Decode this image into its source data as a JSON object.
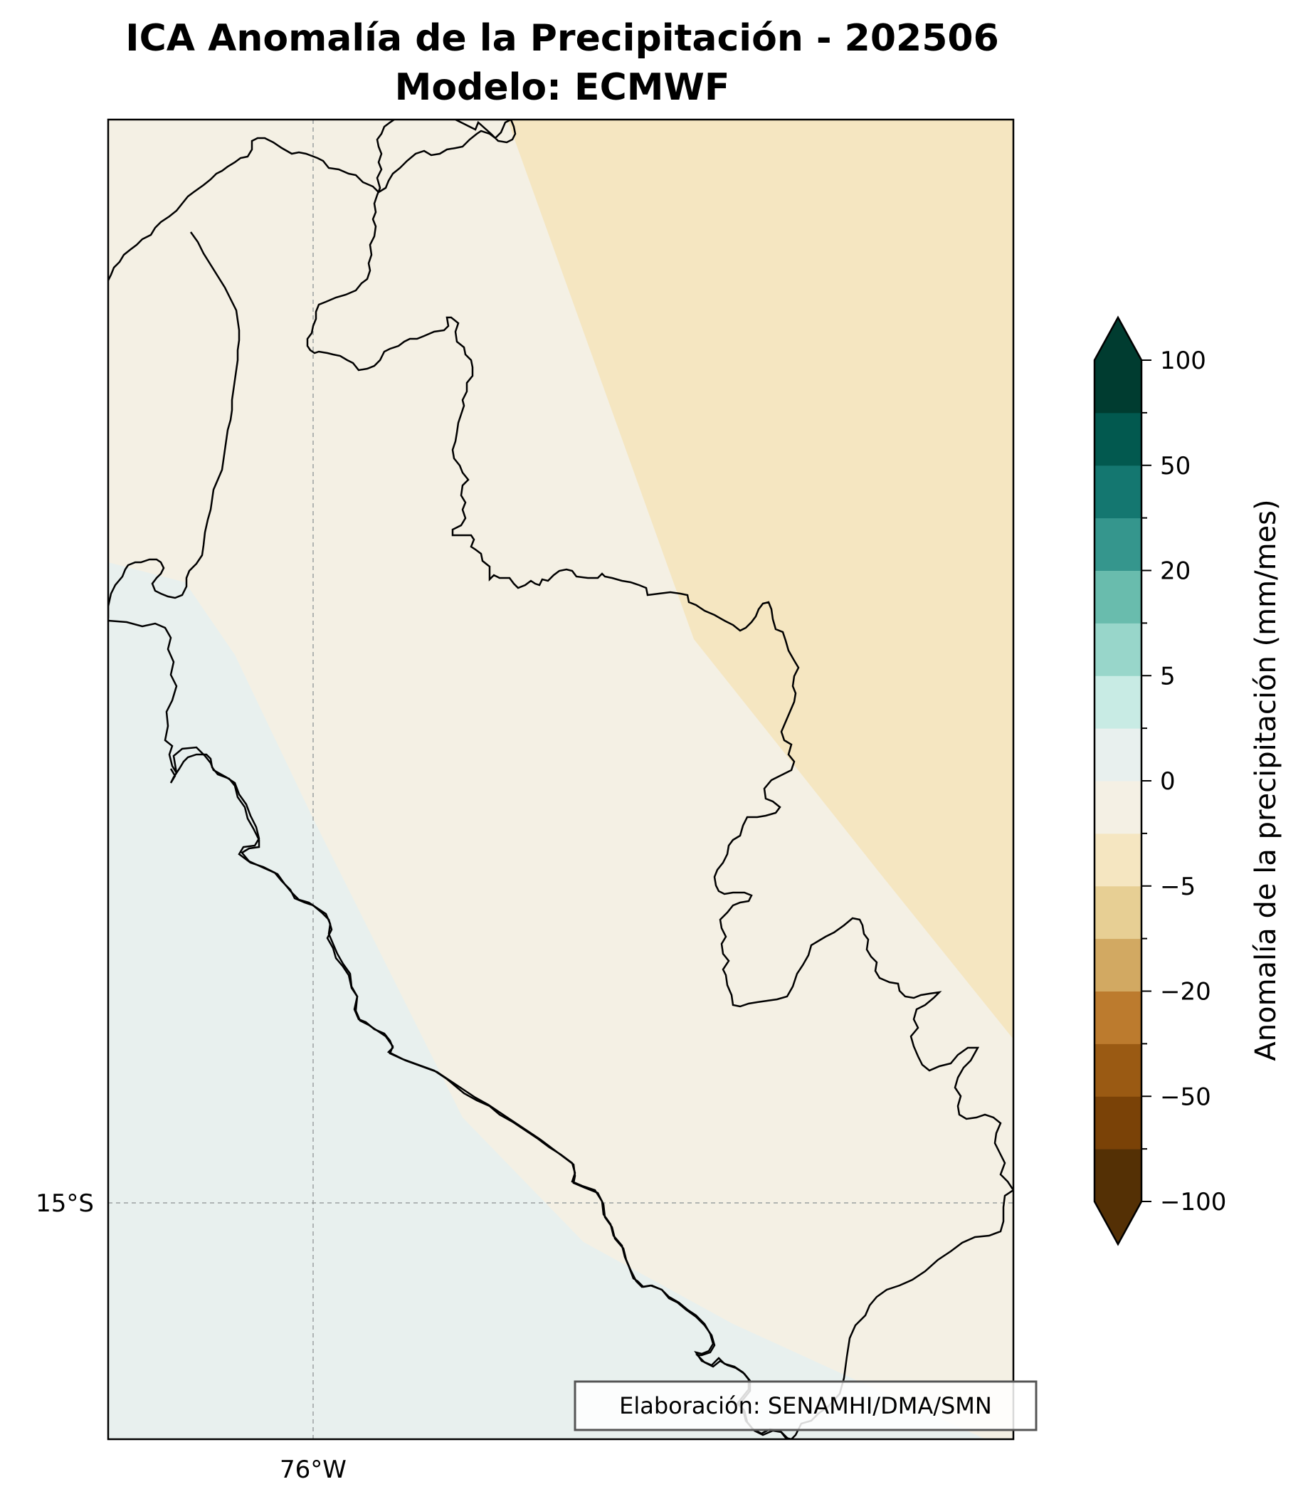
{
  "title": {
    "line1": "ICA Anomalía de la Precipitación - 202506",
    "line2": "Modelo: ECMWF"
  },
  "axes": {
    "x_tick_label": "76°W",
    "y_tick_label": "15°S"
  },
  "colorbar": {
    "label": "Anomalía de la precipitación (mm/mes)",
    "tick_labels": [
      "100",
      "50",
      "20",
      "5",
      "0",
      "−5",
      "−20",
      "−50",
      "−100"
    ],
    "levels": [
      -100,
      -75,
      -50,
      -30,
      -20,
      -10,
      -5,
      -2,
      0,
      2,
      5,
      10,
      20,
      30,
      50,
      75,
      100
    ],
    "colors": [
      "#543005",
      "#7a4207",
      "#9a5a13",
      "#bc7b2e",
      "#d2a962",
      "#e7cf94",
      "#f5e6c1",
      "#f4f0e4",
      "#e8f0ee",
      "#c8ebe4",
      "#98d6ca",
      "#69bcad",
      "#35968d",
      "#147770",
      "#02594f",
      "#003c30"
    ],
    "extend_low_color": "#543005",
    "extend_high_color": "#003c30"
  },
  "regions": {
    "ocean_fill": "#e8f0ee",
    "inland_fill": "#f4f0e4",
    "northeast_fill": "#f5e6c1"
  },
  "credit": "Elaboración: SENAMHI/DMA/SMN"
}
